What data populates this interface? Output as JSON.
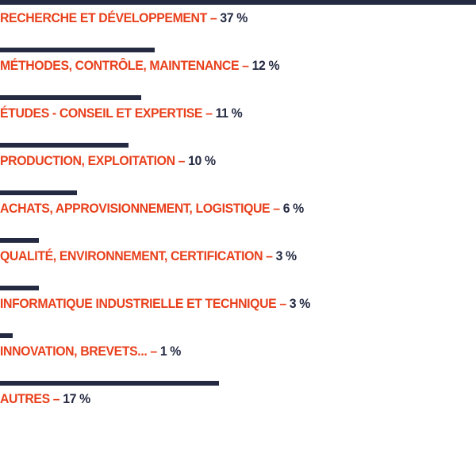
{
  "chart_data": {
    "type": "bar",
    "orientation": "horizontal",
    "categories": [
      "RECHERCHE ET DÉVELOPPEMENT",
      "MÉTHODES, CONTRÔLE, MAINTENANCE",
      "ÉTUDES - CONSEIL ET EXPERTISE",
      "PRODUCTION, EXPLOITATION",
      "ACHATS, APPROVISIONNEMENT, LOGISTIQUE",
      "QUALITÉ, ENVIRONNEMENT, CERTIFICATION",
      "INFORMATIQUE INDUSTRIELLE ET TECHNIQUE",
      "INNOVATION, BREVETS...",
      "AUTRES"
    ],
    "values": [
      37,
      12,
      11,
      10,
      6,
      3,
      3,
      1,
      17
    ],
    "value_labels": [
      "37 %",
      "12 %",
      "11 %",
      "10 %",
      "6 %",
      "3 %",
      "3 %",
      "1 %",
      "17 %"
    ],
    "separator": "–",
    "unit": "%",
    "xlim": [
      0,
      37
    ],
    "grid": false,
    "colors": {
      "bar": "#242a42",
      "label": "#e8401c",
      "value": "#242a42"
    }
  }
}
